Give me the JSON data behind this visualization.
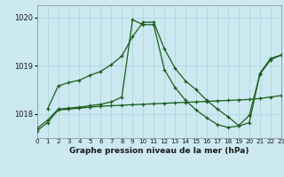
{
  "title": "Graphe pression niveau de la mer (hPa)",
  "bg_color": "#cce8f0",
  "grid_color": "#b0d8e0",
  "line_color": "#1a5c1a",
  "x_min": 0,
  "x_max": 23,
  "y_min": 1017.5,
  "y_max": 1020.25,
  "y_ticks": [
    1018,
    1019,
    1020
  ],
  "x_ticks": [
    0,
    1,
    2,
    3,
    4,
    5,
    6,
    7,
    8,
    9,
    10,
    11,
    12,
    13,
    14,
    15,
    16,
    17,
    18,
    19,
    20,
    21,
    22,
    23
  ],
  "series1_x": [
    0,
    1,
    2,
    3,
    4,
    5,
    6,
    7,
    8,
    9,
    10,
    11,
    12,
    13,
    14,
    15,
    16,
    17,
    18,
    19,
    20,
    21,
    22,
    23
  ],
  "series1_y": [
    1017.65,
    1017.82,
    1018.08,
    1018.1,
    1018.12,
    1018.14,
    1018.16,
    1018.17,
    1018.18,
    1018.19,
    1018.2,
    1018.21,
    1018.22,
    1018.23,
    1018.24,
    1018.25,
    1018.26,
    1018.27,
    1018.28,
    1018.29,
    1018.3,
    1018.32,
    1018.35,
    1018.38
  ],
  "series2_x": [
    0,
    1,
    2,
    3,
    4,
    5,
    6,
    7,
    8,
    9,
    10,
    11,
    12,
    13,
    14,
    15,
    16,
    17,
    18,
    19,
    20,
    21,
    22,
    23
  ],
  "series2_y": [
    1017.7,
    1017.87,
    1018.1,
    1018.12,
    1018.14,
    1018.17,
    1018.2,
    1018.25,
    1018.35,
    1019.95,
    1019.85,
    1019.85,
    1018.92,
    1018.55,
    1018.28,
    1018.08,
    1017.92,
    1017.78,
    1017.72,
    1017.75,
    1017.82,
    1018.84,
    1019.15,
    1019.22
  ],
  "series3_x": [
    1,
    2,
    3,
    4,
    5,
    6,
    7,
    8,
    9,
    10,
    11,
    12,
    13,
    14,
    15,
    16,
    17,
    18,
    19,
    20,
    21,
    22,
    23
  ],
  "series3_y": [
    1018.1,
    1018.58,
    1018.65,
    1018.7,
    1018.8,
    1018.88,
    1019.02,
    1019.2,
    1019.6,
    1019.9,
    1019.9,
    1019.35,
    1018.95,
    1018.68,
    1018.5,
    1018.28,
    1018.1,
    1017.94,
    1017.76,
    1017.97,
    1018.82,
    1019.12,
    1019.22
  ]
}
